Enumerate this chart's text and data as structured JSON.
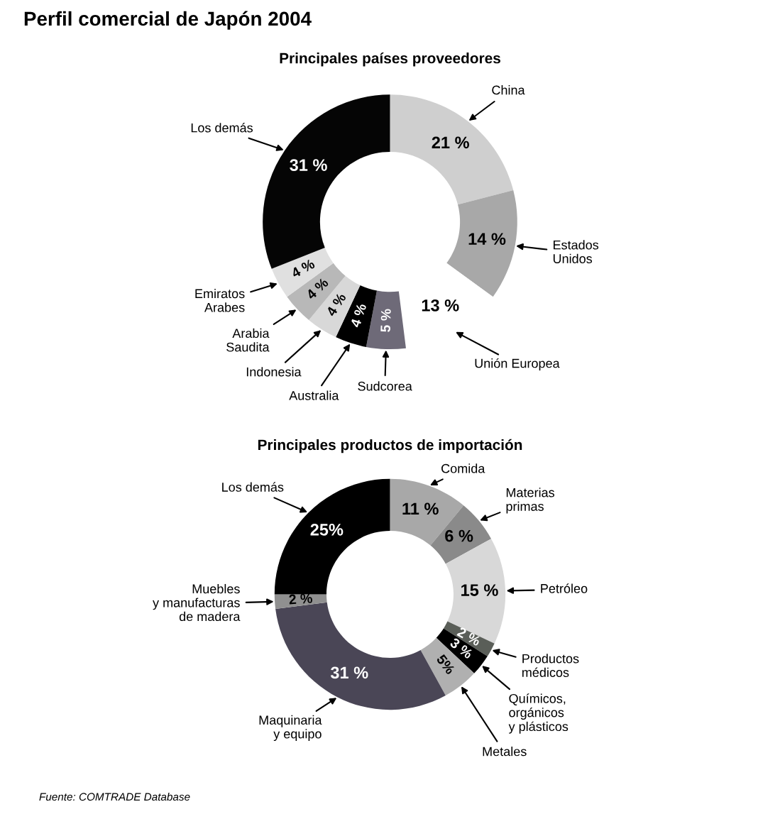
{
  "chart_data": [
    {
      "type": "donut",
      "title": "Perfil comercial de Japón 2004",
      "subtitle": "Principales países proveedores",
      "categories": [
        "China",
        "Estados\nUnidos",
        "Unión Europea",
        "Sudcorea",
        "Australia",
        "Indonesia",
        "Arabia\nSaudita",
        "Emiratos\nArabes",
        "Los demás"
      ],
      "values": [
        21,
        14,
        13,
        5,
        4,
        4,
        4,
        4,
        31
      ],
      "value_labels": [
        "21 %",
        "14 %",
        "13 %",
        "5 %",
        "4 %",
        "4 %",
        "4 %",
        "4 %",
        "31 %"
      ],
      "colors": [
        "#cfcfcf",
        "#a8a8a8",
        "#ffffff",
        "#6e6a78",
        "#000000",
        "#d8d8d8",
        "#b8b8b8",
        "#e0e0e0",
        "#050505"
      ]
    },
    {
      "type": "donut",
      "title": "Principales productos de importación",
      "categories": [
        "Comida",
        "Materias\nprimas",
        "Petróleo",
        "Productos\nmédicos",
        "Químicos,\norgánicos\ny plásticos",
        "Metales",
        "Maquinaria\ny equipo",
        "Muebles\ny manufacturas\nde madera",
        "Los demás"
      ],
      "values": [
        11,
        6,
        15,
        2,
        3,
        5,
        31,
        2,
        25
      ],
      "value_labels": [
        "11 %",
        "6 %",
        "15 %",
        "2 %",
        "3 %",
        "5%",
        "31 %",
        "2 %",
        "25%"
      ],
      "colors": [
        "#a8a8a8",
        "#8a8a8a",
        "#d8d8d8",
        "#5a5e58",
        "#000000",
        "#b0b0b0",
        "#4a4656",
        "#909090",
        "#000000"
      ],
      "annotations": [
        "Fuente: COMTRADE Database"
      ]
    }
  ]
}
